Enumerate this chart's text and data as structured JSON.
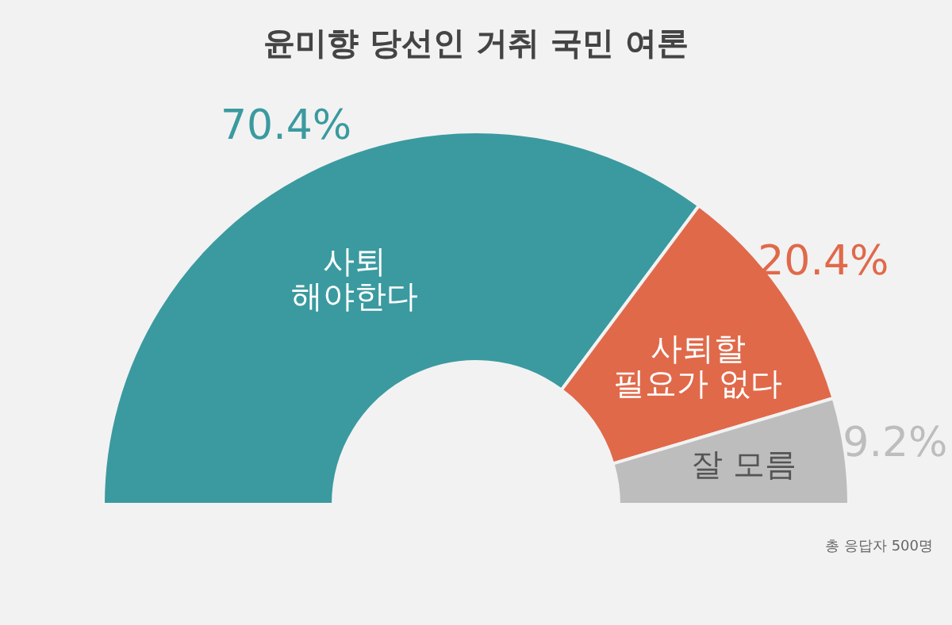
{
  "chart_data": {
    "type": "donut",
    "title": "윤미향 당선인 거취 국민 여론",
    "categories": [
      "사퇴\n해야한다",
      "사퇴할\n필요가 없다",
      "잘 모름"
    ],
    "values": [
      70.4,
      20.4,
      9.2
    ],
    "colors": [
      "#3a9a9f",
      "#e0694a",
      "#bdbdbd"
    ],
    "value_labels": [
      "70.4%",
      "20.4%",
      "9.2%"
    ],
    "annotations": [
      "총 응답자 500명"
    ]
  }
}
